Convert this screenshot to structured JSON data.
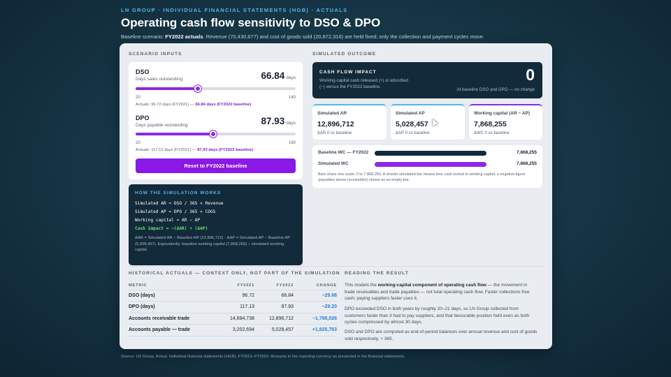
{
  "header": {
    "eyebrow": "LN GROUP · INDIVIDUAL FINANCIAL STATEMENTS (HGB) · ACTUALS",
    "title": "Operating cash flow sensitivity to DSO & DPO",
    "subtitle_prefix": "Baseline scenario: ",
    "subtitle_bold": "FY2022 actuals",
    "subtitle_rest": ". Revenue (70,430,677) and cost of goods sold (20,872,316) are held fixed; only the collection and payment cycles move."
  },
  "scenario": {
    "label": "SCENARIO INPUTS",
    "dso": {
      "name": "DSO",
      "desc": "Days sales outstanding",
      "value": "66.84",
      "unit": "days",
      "min": "20",
      "max": "140",
      "fraction": 0.3903,
      "actual_prefix": "Actuals: 96.72 days (FY2021) — ",
      "actual_bold": "66.84 days (FY2022 baseline)"
    },
    "dpo": {
      "name": "DPO",
      "desc": "Days payable outstanding",
      "value": "87.93",
      "unit": "days",
      "min": "20",
      "max": "160",
      "fraction": 0.4852,
      "actual_prefix": "Actuals: 117.13 days (FY2021) — ",
      "actual_bold": "87.93 days (FY2022 baseline)"
    },
    "reset_label": "Reset to FY2022 baseline"
  },
  "how": {
    "title": "HOW THE SIMULATION WORKS",
    "lines": [
      "Simulated AR = DSO / 365 × Revenue",
      "Simulated AP = DPO / 365 × COGS",
      "Working capital = AR − AP",
      "Cash impact = −(ΔAR) + (ΔAP)"
    ],
    "note": "ΔAR = Simulated AR − Baseline AR (12,896,712) · ΔAP = Simulated AP − Baseline AP (5,028,457). Equivalently: baseline working capital (7,868,255) − simulated working capital."
  },
  "outcome": {
    "label": "SIMULATED OUTCOME",
    "impact": {
      "title": "CASH FLOW IMPACT",
      "desc": "Working-capital cash released (+) or absorbed (−) versus the FY2022 baseline.",
      "value": "0",
      "sub": "At baseline DSO and DPO — no change"
    },
    "stats": [
      {
        "title": "Simulated AR",
        "value": "12,896,712",
        "sub": "ΔAR 0 vs baseline",
        "color": "#58b6e6"
      },
      {
        "title": "Simulated AP",
        "value": "5,028,457",
        "sub": "ΔAP 0 vs baseline",
        "color": "#58b6e6"
      },
      {
        "title": "Working capital (AR − AP)",
        "value": "7,868,255",
        "sub": "ΔWC 0 vs baseline",
        "color": "#8a2be2"
      }
    ],
    "bars": [
      {
        "label": "Baseline WC — FY2022",
        "value": "7,868,255",
        "fraction": 1.0,
        "color": "#122a3a"
      },
      {
        "label": "Simulated WC",
        "value": "7,868,255",
        "fraction": 1.0,
        "color": "#8a2be2"
      }
    ],
    "bars_note": "Bars share one scale, 0 to 7,868,255. A shorter simulated bar means less cash locked in working capital; a negative figure (payables above receivables) shows as an empty bar."
  },
  "historical": {
    "label": "HISTORICAL ACTUALS — CONTEXT ONLY, NOT PART OF THE SIMULATION",
    "columns": [
      "METRIC",
      "FY2021",
      "FY2022",
      "CHANGE"
    ],
    "rows": [
      [
        "DSO (days)",
        "96.72",
        "66.84",
        "−29.88"
      ],
      [
        "DPO (days)",
        "117.13",
        "87.93",
        "−29.20"
      ],
      [
        "Accounts receivable trade",
        "14,684,738",
        "12,896,712",
        "−1,788,026"
      ],
      [
        "Accounts payable — trade",
        "3,202,694",
        "5,028,457",
        "+1,825,763"
      ]
    ]
  },
  "reading": {
    "title": "READING THE RESULT",
    "p1_a": "This models the ",
    "p1_b": "working-capital component of operating cash flow",
    "p1_c": " — the movement in trade receivables and trade payables — not total operating cash flow. Faster collections free cash; paying suppliers faster uses it.",
    "p2": "DPO exceeded DSO in both years by roughly 20–21 days, so LN Group collected from customers faster than it had to pay suppliers, and that favourable position held even as both cycles compressed by almost 30 days.",
    "p3": "DSO and DPO are computed as end-of-period balances over annual revenue and cost of goods sold respectively, × 365."
  },
  "source": "Source: LN Group, Actual, Individual financial statements (HGB), FY2021–FY2022. Amounts in the reporting currency as presented in the financial statements."
}
